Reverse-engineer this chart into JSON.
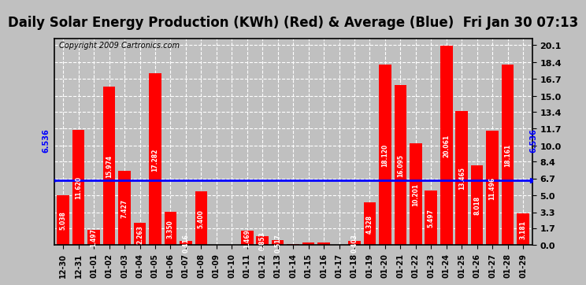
{
  "title": "Daily Solar Energy Production (KWh) (Red) & Average (Blue)  Fri Jan 30 07:13",
  "copyright": "Copyright 2009 Cartronics.com",
  "categories": [
    "12-30",
    "12-31",
    "01-01",
    "01-02",
    "01-03",
    "01-04",
    "01-05",
    "01-06",
    "01-07",
    "01-08",
    "01-09",
    "01-10",
    "01-11",
    "01-12",
    "01-13",
    "01-14",
    "01-15",
    "01-16",
    "01-17",
    "01-18",
    "01-19",
    "01-20",
    "01-21",
    "01-22",
    "01-23",
    "01-24",
    "01-25",
    "01-26",
    "01-27",
    "01-28",
    "01-29"
  ],
  "values": [
    5.038,
    11.62,
    1.497,
    15.974,
    7.427,
    2.263,
    17.282,
    3.35,
    0.416,
    5.4,
    0.0,
    0.017,
    1.469,
    0.853,
    0.517,
    0.083,
    0.244,
    0.284,
    0.0,
    0.403,
    4.328,
    18.12,
    16.095,
    10.201,
    5.497,
    20.061,
    13.465,
    8.018,
    11.496,
    18.161,
    3.181
  ],
  "average": 6.536,
  "bar_color": "#FF0000",
  "average_color": "#0000FF",
  "background_color": "#C0C0C0",
  "plot_bg_color": "#C0C0C0",
  "grid_color": "#FFFFFF",
  "title_bg_color": "#FFFFFF",
  "ylim": [
    0.0,
    20.8
  ],
  "yticks": [
    0.0,
    1.7,
    3.3,
    5.0,
    6.7,
    8.4,
    10.0,
    11.7,
    13.4,
    15.0,
    16.7,
    18.4,
    20.1
  ],
  "avg_label": "6.536",
  "title_fontsize": 12,
  "copyright_fontsize": 7,
  "tick_fontsize": 7,
  "bar_label_fontsize": 5.5
}
